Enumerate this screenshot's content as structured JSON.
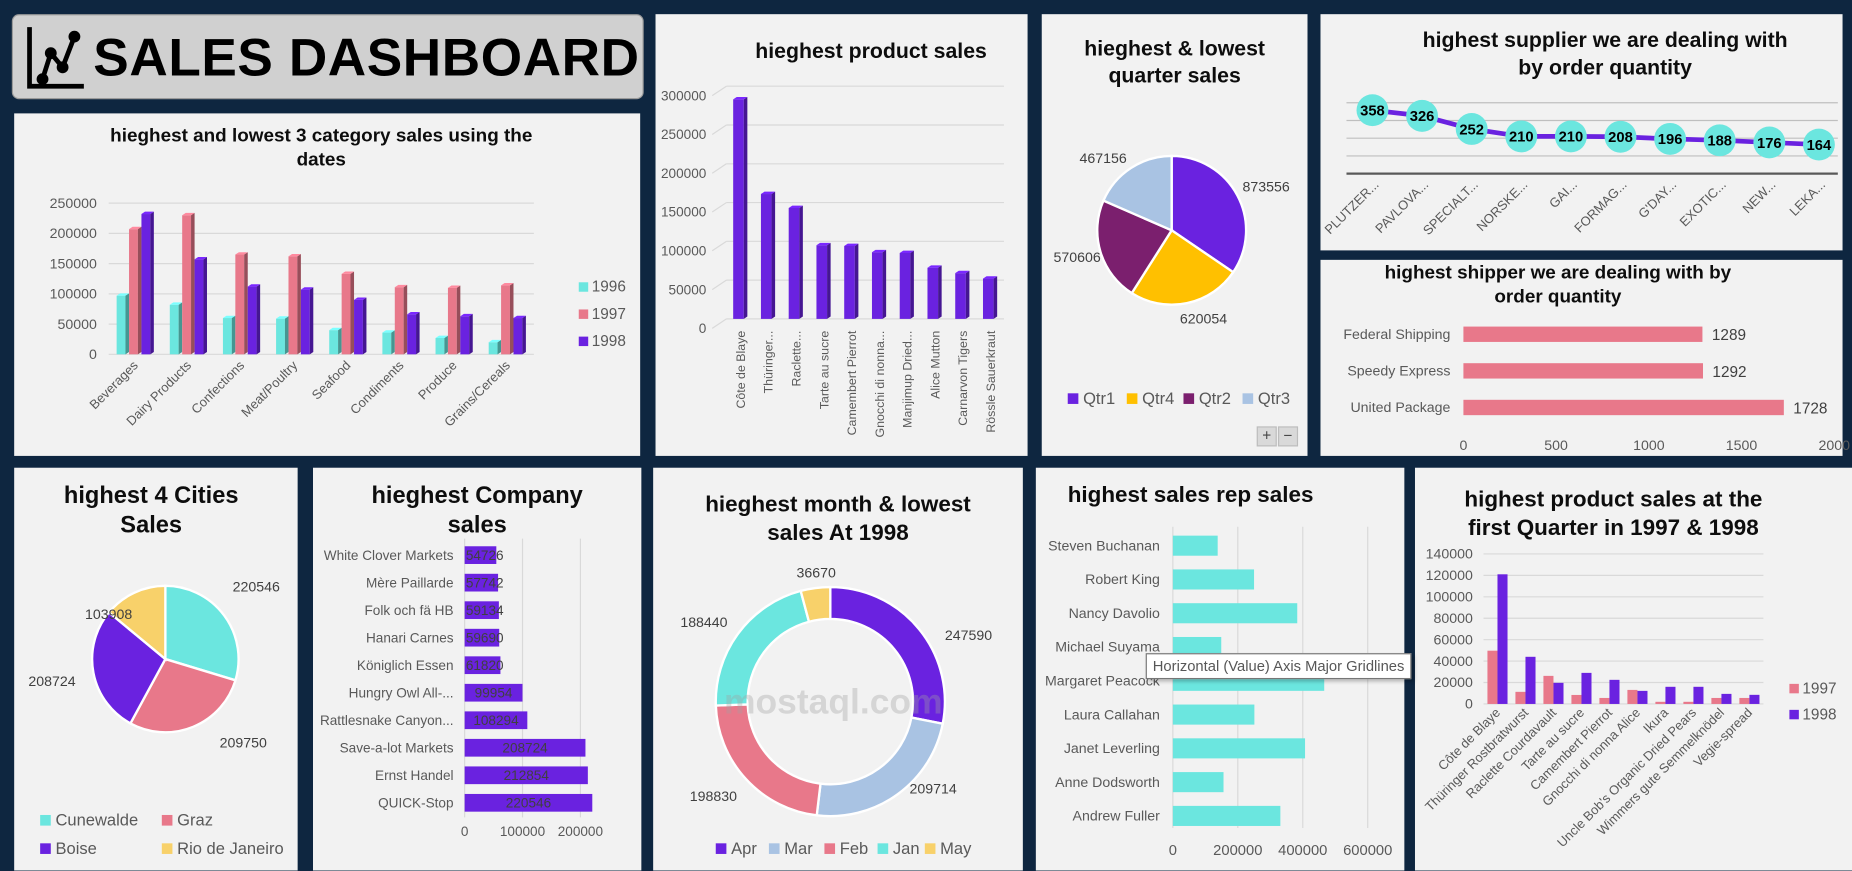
{
  "title": {
    "text": "SALES DASHBOARD",
    "icon": "line-chart-icon"
  },
  "colors": {
    "background": "#0e2640",
    "panel": "#f2f2f2",
    "teal": "#6be6df",
    "pink": "#e8788a",
    "purple": "#6a22e0",
    "yellow": "#f8d16a",
    "light_blue": "#a9c3e3",
    "gold": "#ffc000",
    "plum": "#7b1f6e"
  },
  "tooltip": "Horizontal (Value) Axis Major Gridlines",
  "watermark": "mostaql.com",
  "zoom_controls": {
    "plus": "+",
    "minus": "−"
  },
  "chart_data": [
    {
      "type": "bar",
      "title_lines": [
        "hieghest and lowest 3 category sales  using the",
        "dates"
      ],
      "categories": [
        "Beverages",
        "Dairy Products",
        "Confections",
        "Meat/Poultry",
        "Seafood",
        "Condiments",
        "Produce",
        "Grains/Cereals"
      ],
      "series": [
        {
          "name": "1996",
          "color": "#6be6df",
          "values": [
            97000,
            82000,
            60000,
            59000,
            40000,
            36000,
            27000,
            20000
          ]
        },
        {
          "name": "1997",
          "color": "#e8788a",
          "values": [
            207000,
            230000,
            165000,
            162000,
            133000,
            111000,
            110000,
            114000
          ]
        },
        {
          "name": "1998",
          "color": "#6a22e0",
          "values": [
            232000,
            157000,
            112000,
            107000,
            90000,
            66000,
            63000,
            60000
          ]
        }
      ],
      "ylim": [
        0,
        250000
      ],
      "yticks": [
        0,
        50000,
        100000,
        150000,
        200000,
        250000
      ],
      "grid": true,
      "legend": "right"
    },
    {
      "type": "bar",
      "title_lines": [
        "hieghest product sales"
      ],
      "categories": [
        "Côte de Blaye",
        "Thüringer...",
        "Raclette...",
        "Tarte au sucre",
        "Camembert Pierrot",
        "Gnocchi di nonna...",
        "Manjimup Dried...",
        "Alice Mutton",
        "Carnarvon Tigers",
        "Rössle Sauerkraut"
      ],
      "series": [
        {
          "color": "#6a22e0",
          "values": [
            283000,
            161000,
            143000,
            95000,
            94000,
            86000,
            85000,
            66000,
            59000,
            52000
          ]
        }
      ],
      "ylim": [
        0,
        300000
      ],
      "yticks": [
        0,
        50000,
        100000,
        150000,
        200000,
        250000,
        300000
      ],
      "grid": true,
      "legend": "none"
    },
    {
      "type": "pie",
      "title_lines": [
        "hieghest & lowest",
        "quarter sales"
      ],
      "categories": [
        "Qtr1",
        "Qtr4",
        "Qtr2",
        "Qtr3"
      ],
      "values": [
        873556,
        620054,
        570606,
        467156
      ],
      "colors": [
        "#6a22e0",
        "#ffc000",
        "#7b1f6e",
        "#a9c3e3"
      ],
      "legend": "bottom"
    },
    {
      "type": "line",
      "title_lines": [
        "highest supplier we are dealing with",
        "by order quantity"
      ],
      "categories": [
        "PLUTZER...",
        "PAVLOVA...",
        "SPECIALT...",
        "NORSKE...",
        "GAI...",
        "FORMAG...",
        "G'DAY...",
        "EXOTIC...",
        "NEW...",
        "LEKA..."
      ],
      "series": [
        {
          "color": "#6a22e0",
          "marker_color": "#6be6df",
          "values": [
            358,
            326,
            252,
            210,
            210,
            208,
            196,
            188,
            176,
            164
          ]
        }
      ],
      "ylim": [
        0,
        400
      ],
      "grid": true,
      "legend": "none"
    },
    {
      "type": "bar",
      "orientation": "horizontal",
      "title_lines": [
        "highest shipper we are dealing with by",
        "order quantity"
      ],
      "categories": [
        "Federal Shipping",
        "Speedy Express",
        "United Package"
      ],
      "series": [
        {
          "color": "#e8788a",
          "values": [
            1289,
            1292,
            1728
          ]
        }
      ],
      "xlim": [
        0,
        2000
      ],
      "xticks": [
        0,
        500,
        1000,
        1500,
        2000
      ],
      "legend": "none"
    },
    {
      "type": "pie",
      "title_lines": [
        "highest 4 Cities",
        "Sales"
      ],
      "categories": [
        "Cunewalde",
        "Graz",
        "Boise",
        "Rio de Janeiro"
      ],
      "values": [
        220546,
        209750,
        208724,
        103908
      ],
      "colors": [
        "#6be6df",
        "#e8788a",
        "#6a22e0",
        "#f8d16a"
      ],
      "legend": "bottom"
    },
    {
      "type": "bar",
      "orientation": "horizontal",
      "title_lines": [
        "hieghest Company",
        "sales"
      ],
      "categories": [
        "White Clover Markets",
        "Mère Paillarde",
        "Folk och fä HB",
        "Hanari Carnes",
        "Königlich Essen",
        "Hungry Owl All-...",
        "Rattlesnake Canyon...",
        "Save-a-lot Markets",
        "Ernst Handel",
        "QUICK-Stop"
      ],
      "series": [
        {
          "color": "#6a22e0",
          "values": [
            54726,
            57742,
            59134,
            59690,
            61820,
            99954,
            108294,
            208724,
            212854,
            220546
          ]
        }
      ],
      "xlim": [
        0,
        250000
      ],
      "xticks": [
        0,
        100000,
        200000
      ],
      "legend": "none"
    },
    {
      "type": "pie",
      "donut": true,
      "title_lines": [
        "hieghest month & lowest",
        "sales At 1998"
      ],
      "categories": [
        "Apr",
        "Mar",
        "Feb",
        "Jan",
        "May"
      ],
      "values": [
        247590,
        209714,
        198830,
        188440,
        36670
      ],
      "colors": [
        "#6a22e0",
        "#a9c3e3",
        "#e8788a",
        "#6be6df",
        "#f8d16a"
      ],
      "legend": "bottom"
    },
    {
      "type": "bar",
      "orientation": "horizontal",
      "title_lines": [
        "highest sales rep sales"
      ],
      "categories": [
        "Steven Buchanan",
        "Robert King",
        "Nancy Davolio",
        "Michael Suyama",
        "Margaret Peacock",
        "Laura Callahan",
        "Janet Leverling",
        "Anne Dodsworth",
        "Andrew Fuller"
      ],
      "series": [
        {
          "color": "#6be6df",
          "values": [
            138000,
            250000,
            383000,
            149000,
            466000,
            251000,
            407000,
            156000,
            331000
          ]
        }
      ],
      "xlim": [
        0,
        600000
      ],
      "xticks": [
        0,
        200000,
        400000,
        600000
      ],
      "grid": true,
      "legend": "none"
    },
    {
      "type": "bar",
      "title_lines": [
        "highest product sales at the",
        "first Quarter in 1997 & 1998"
      ],
      "categories": [
        "Côte de Blaye",
        "Thüringer Rostbratwurst",
        "Raclette Courdavault",
        "Tarte au sucre",
        "Camembert Pierrot",
        "Gnocchi di nonna Alice",
        "Ikura",
        "Uncle Bob's Organic Dried Pears",
        "Wimmers gute Semmelknödel",
        "Vegie-spread"
      ],
      "series": [
        {
          "name": "1997",
          "color": "#e8788a",
          "values": [
            49700,
            11300,
            26200,
            8400,
            5600,
            13100,
            2000,
            2000,
            5600,
            5600
          ]
        },
        {
          "name": "1998",
          "color": "#6a22e0",
          "values": [
            121000,
            44000,
            19700,
            29000,
            22500,
            12200,
            16000,
            16000,
            9400,
            8500
          ]
        }
      ],
      "ylim": [
        0,
        140000
      ],
      "yticks": [
        0,
        20000,
        40000,
        60000,
        80000,
        100000,
        120000,
        140000
      ],
      "grid": true,
      "legend": "right"
    }
  ]
}
